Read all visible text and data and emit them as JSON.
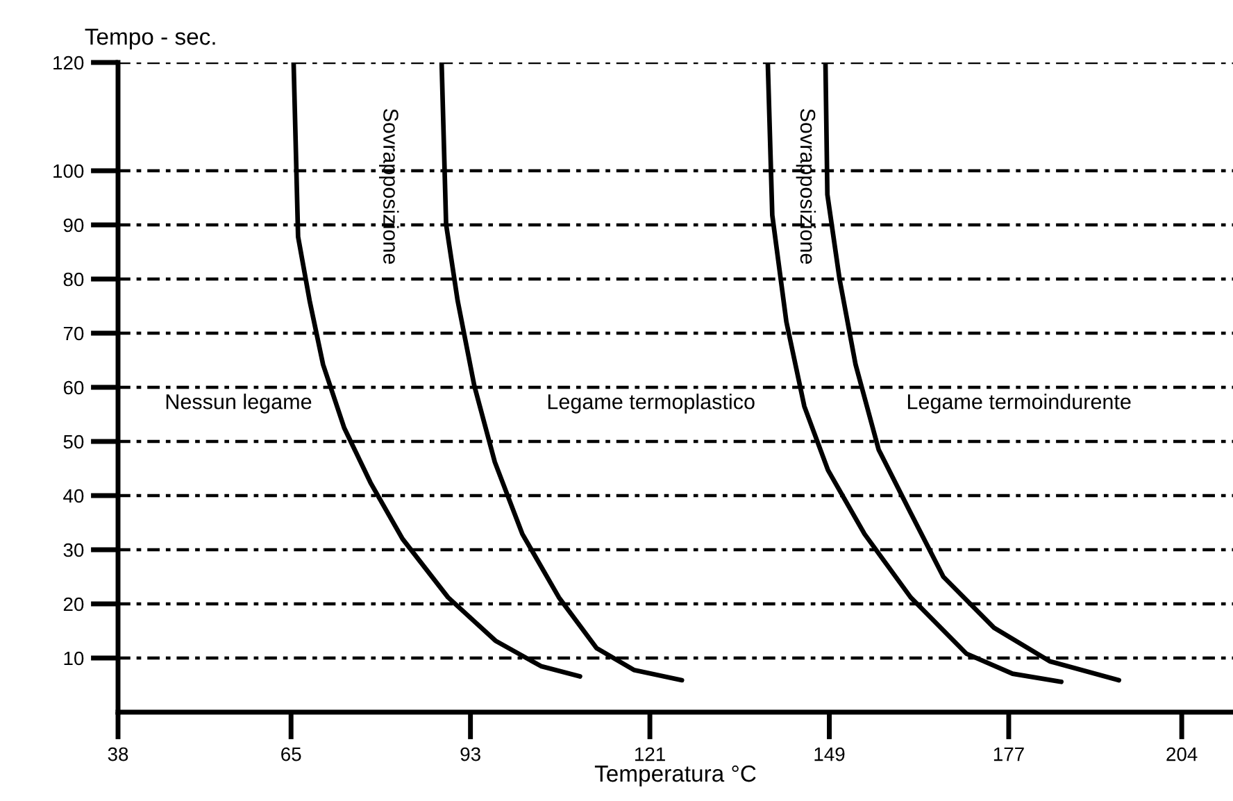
{
  "chart_data": {
    "type": "line",
    "xlabel": "Temperatura °C",
    "ylabel": "Tempo - sec.",
    "xlim": [
      38,
      212
    ],
    "xticks": [
      38,
      65,
      93,
      121,
      149,
      177,
      204
    ],
    "ylim": [
      0,
      120
    ],
    "yticks": [
      10,
      20,
      30,
      40,
      50,
      60,
      70,
      80,
      90,
      100,
      120
    ],
    "grid": "y",
    "legend": false,
    "marker": "none",
    "line_style": "solid",
    "series": [
      {
        "color": "#000000",
        "x": [
          65.4,
          66.1,
          67.9,
          70.0,
          73.3,
          77.4,
          82.4,
          89.5,
          96.9,
          104.0,
          110.1
        ],
        "values": [
          120,
          87.8,
          76,
          64.2,
          52.5,
          42.4,
          32,
          21.2,
          13.2,
          8.5,
          6.6
        ]
      },
      {
        "color": "#000000",
        "x": [
          88.5,
          89.2,
          91.0,
          93.6,
          96.8,
          101.1,
          106.8,
          112.7,
          118.5,
          126.0
        ],
        "values": [
          120,
          90.1,
          76,
          60.3,
          46.2,
          32.9,
          21.2,
          11.8,
          7.8,
          5.9
        ]
      },
      {
        "color": "#000000",
        "x": [
          139.4,
          140.1,
          142.3,
          145.1,
          148.8,
          154.5,
          161.7,
          170.4,
          177.6,
          185.2
        ],
        "values": [
          120,
          91.8,
          72.1,
          56.5,
          44.7,
          32.9,
          21.2,
          10.8,
          7.1,
          5.6
        ]
      },
      {
        "color": "#000000",
        "x": [
          148.4,
          148.7,
          150.6,
          153.1,
          156.7,
          161.7,
          166.8,
          174.7,
          183.4,
          194.2
        ],
        "values": [
          120,
          95.6,
          80,
          64.2,
          48.5,
          36.8,
          25,
          15.6,
          9.4,
          5.9
        ]
      }
    ],
    "annotations": [
      "Nessun legame",
      "Legame termoplastico",
      "Legame termoindurente",
      "Sovrapposizione",
      "Sovrapposizione"
    ]
  }
}
